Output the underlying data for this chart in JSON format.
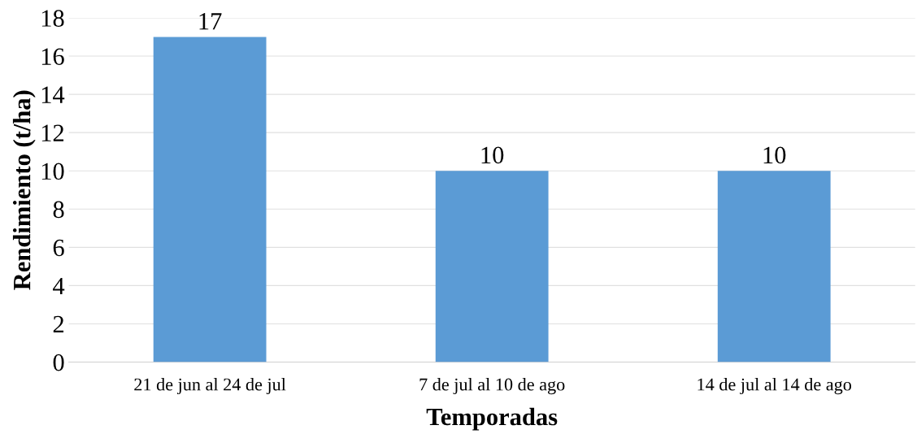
{
  "chart_data": {
    "type": "bar",
    "xlabel": "Temporadas",
    "ylabel": "Rendimiento (t/ha)",
    "categories": [
      "21 de jun al 24 de jul",
      "7 de jul al 10 de ago",
      "14 de jul al 14 de ago"
    ],
    "values": [
      17,
      10,
      10
    ],
    "color": "#5b9bd5",
    "ylim": [
      0,
      18
    ],
    "yticks": [
      0,
      2,
      4,
      6,
      8,
      10,
      12,
      14,
      16,
      18
    ],
    "grid": "y",
    "data_labels": true
  }
}
